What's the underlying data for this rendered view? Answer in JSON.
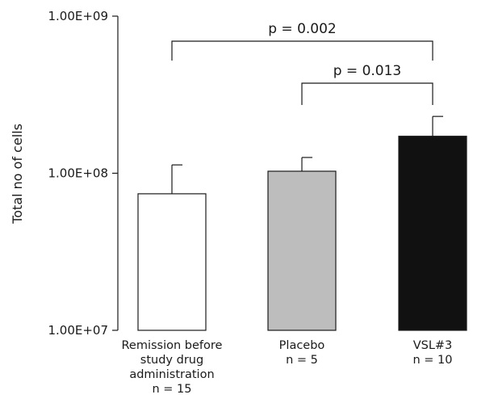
{
  "chart_data": {
    "type": "bar",
    "yscale": "log",
    "ylim": [
      10000000,
      1000000000
    ],
    "ylabel": "Total no of cells",
    "yticks": [
      {
        "value": 1000000000,
        "label": "1.00E+09"
      },
      {
        "value": 100000000,
        "label": "1.00E+08"
      },
      {
        "value": 10000000,
        "label": "1.00E+07"
      }
    ],
    "categories": [
      {
        "lines": [
          "Remission before",
          "study drug",
          "administration",
          "n = 15"
        ],
        "value": 74000000,
        "error_upper": 113000000,
        "color": "#ffffff"
      },
      {
        "lines": [
          "Placebo",
          "n = 5"
        ],
        "value": 103000000,
        "error_upper": 126000000,
        "color": "#bdbdbd"
      },
      {
        "lines": [
          "VSL#3",
          "n = 10"
        ],
        "value": 172000000,
        "error_upper": 230000000,
        "color": "#111111"
      }
    ],
    "annotations": [
      {
        "from": 0,
        "to": 2,
        "label": "p = 0.002"
      },
      {
        "from": 1,
        "to": 2,
        "label": "p = 0.013"
      }
    ],
    "grid": false,
    "legend": "none"
  }
}
